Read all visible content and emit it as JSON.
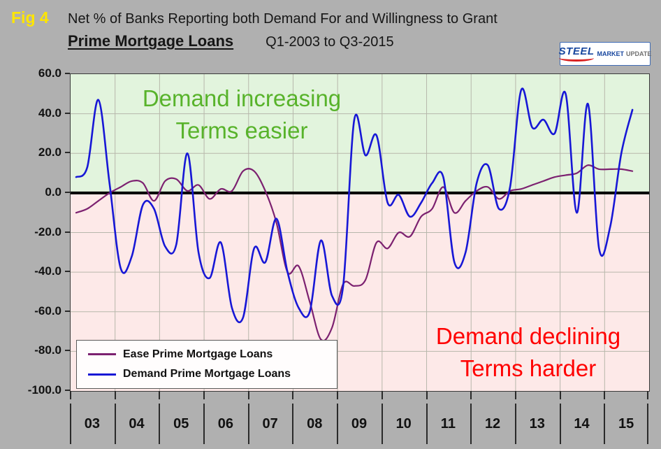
{
  "figure": {
    "fig_label": "Fig 4",
    "title_line1": "Net % of Banks Reporting both Demand For and Willingness to Grant",
    "title_bold": "Prime Mortgage Loans",
    "title_range": "Q1-2003 to Q3-2015"
  },
  "logo": {
    "steel": "STEEL",
    "market": "MARKET",
    "update": "UPDATE"
  },
  "annotations": {
    "upper_line1": "Demand increasing",
    "upper_line2": "Terms easier",
    "upper_color": "#58b32b",
    "lower_line1": "Demand declining",
    "lower_line2": "Terms harder",
    "lower_color": "#ff0000"
  },
  "chart_data": {
    "type": "line",
    "title": "Net % of Banks Reporting both Demand For and Willingness to Grant - Prime Mortgage Loans",
    "x_range_label": "Q1-2003 to Q3-2015",
    "x_start": "2003-Q1",
    "x_end": "2015-Q3",
    "frequency": "quarterly",
    "n_points": 51,
    "xtick_labels": [
      "03",
      "04",
      "05",
      "06",
      "07",
      "08",
      "09",
      "10",
      "11",
      "12",
      "13",
      "14",
      "15"
    ],
    "ytick_values": [
      60,
      40,
      20,
      0,
      -20,
      -40,
      -60,
      -80,
      -100
    ],
    "ytick_labels": [
      "60.0",
      "40.0",
      "20.0",
      "0.0",
      "-20.0",
      "-40.0",
      "-60.0",
      "-80.0",
      "-100.0"
    ],
    "ylim": [
      -100,
      60
    ],
    "zero_line": true,
    "grid": true,
    "legend_position": "bottom-left",
    "bg_above_zero": "#e2f4dd",
    "bg_below_zero": "#fde9e8",
    "grid_color": "#b7b7ab",
    "series": [
      {
        "name": "Ease Prime Mortgage Loans",
        "color": "#7c2170",
        "values": [
          -10,
          -8,
          -4,
          0,
          3,
          6,
          5,
          -4,
          6,
          7,
          1,
          4,
          -3,
          2,
          1,
          11,
          11,
          1,
          -15,
          -40,
          -37,
          -55,
          -74,
          -68,
          -46,
          -47,
          -44,
          -25,
          -28,
          -20,
          -22,
          -12,
          -8,
          3,
          -10,
          -4,
          1,
          3,
          -3,
          1,
          2,
          4,
          6,
          8,
          9,
          10,
          14,
          12,
          12,
          12,
          11
        ]
      },
      {
        "name": "Demand Prime Mortgage Loans",
        "color": "#1717d6",
        "values": [
          8,
          13,
          47,
          5,
          -38,
          -32,
          -6,
          -8,
          -27,
          -26,
          20,
          -30,
          -43,
          -25,
          -58,
          -63,
          -28,
          -35,
          -13,
          -40,
          -58,
          -60,
          -24,
          -52,
          -47,
          37,
          19,
          29,
          -5,
          -1,
          -12,
          -5,
          5,
          8,
          -35,
          -30,
          5,
          14,
          -8,
          3,
          52,
          33,
          37,
          30,
          50,
          -10,
          45,
          -28,
          -17,
          20,
          42
        ]
      }
    ]
  }
}
